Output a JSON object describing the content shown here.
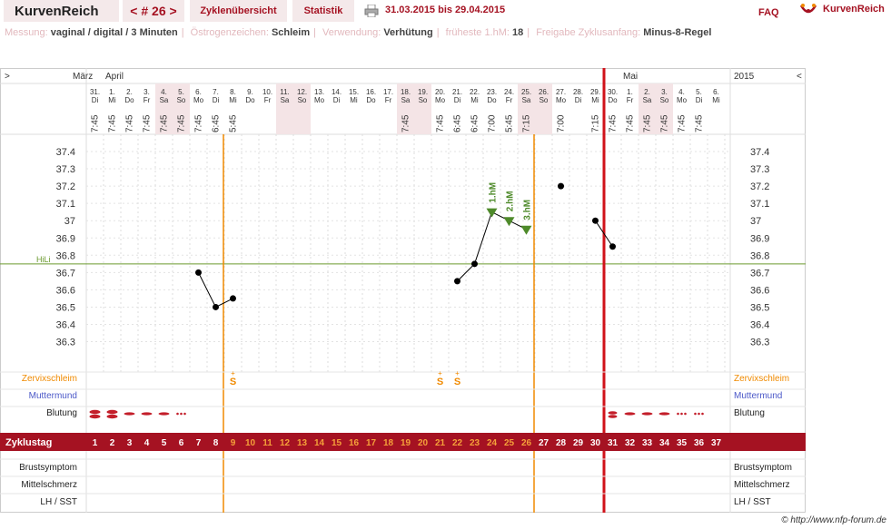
{
  "header": {
    "brand": "KurvenReich",
    "cycle_nav": "< # 26 >",
    "overview": "Zyklenübersicht",
    "stats": "Statistik",
    "date_range": "31.03.2015 bis 29.04.2015",
    "faq": "FAQ",
    "logo_text": "KurvenReich"
  },
  "info": {
    "measure_label": "Messung:",
    "measure_value": "vaginal / digital / 3 Minuten",
    "sign_label": "Östrogenzeichen:",
    "sign_value": "Schleim",
    "use_label": "Verwendung:",
    "use_value": "Verhütung",
    "earliest_label": "früheste 1.hM:",
    "earliest_value": "18",
    "release_label": "Freigabe Zyklusanfang:",
    "release_value": "Minus-8-Regel"
  },
  "grid": {
    "left_arrow": ">",
    "right_arrow": "<",
    "month_march": "März",
    "month_april": "April",
    "month_may": "Mai",
    "year": "2015"
  },
  "days": [
    {
      "d": "31.",
      "w": "Di",
      "t": "7:45",
      "we": false
    },
    {
      "d": "1.",
      "w": "Mi",
      "t": "7:45",
      "we": false
    },
    {
      "d": "2.",
      "w": "Do",
      "t": "7:45",
      "we": false
    },
    {
      "d": "3.",
      "w": "Fr",
      "t": "7:45",
      "we": false
    },
    {
      "d": "4.",
      "w": "Sa",
      "t": "7:45",
      "we": true
    },
    {
      "d": "5.",
      "w": "So",
      "t": "7:45",
      "we": true
    },
    {
      "d": "6.",
      "w": "Mo",
      "t": "7:45",
      "we": false
    },
    {
      "d": "7.",
      "w": "Di",
      "t": "6:45",
      "we": false
    },
    {
      "d": "8.",
      "w": "Mi",
      "t": "5:45",
      "we": false
    },
    {
      "d": "9.",
      "w": "Do",
      "t": "",
      "we": false
    },
    {
      "d": "10.",
      "w": "Fr",
      "t": "",
      "we": false
    },
    {
      "d": "11.",
      "w": "Sa",
      "t": "",
      "we": true
    },
    {
      "d": "12.",
      "w": "So",
      "t": "",
      "we": true
    },
    {
      "d": "13.",
      "w": "Mo",
      "t": "",
      "we": false
    },
    {
      "d": "14.",
      "w": "Di",
      "t": "",
      "we": false
    },
    {
      "d": "15.",
      "w": "Mi",
      "t": "",
      "we": false
    },
    {
      "d": "16.",
      "w": "Do",
      "t": "",
      "we": false
    },
    {
      "d": "17.",
      "w": "Fr",
      "t": "",
      "we": false
    },
    {
      "d": "18.",
      "w": "Sa",
      "t": "7:45",
      "we": true
    },
    {
      "d": "19.",
      "w": "So",
      "t": "",
      "we": true
    },
    {
      "d": "20.",
      "w": "Mo",
      "t": "7:45",
      "we": false
    },
    {
      "d": "21.",
      "w": "Di",
      "t": "6:45",
      "we": false
    },
    {
      "d": "22.",
      "w": "Mi",
      "t": "6:45",
      "we": false
    },
    {
      "d": "23.",
      "w": "Do",
      "t": "7:00",
      "we": false
    },
    {
      "d": "24.",
      "w": "Fr",
      "t": "5:45",
      "we": false
    },
    {
      "d": "25.",
      "w": "Sa",
      "t": "7:15",
      "we": true
    },
    {
      "d": "26.",
      "w": "So",
      "t": "",
      "we": true
    },
    {
      "d": "27.",
      "w": "Mo",
      "t": "7:00",
      "we": false
    },
    {
      "d": "28.",
      "w": "Di",
      "t": "",
      "we": false
    },
    {
      "d": "29.",
      "w": "Mi",
      "t": "7:15",
      "we": false
    },
    {
      "d": "30.",
      "w": "Do",
      "t": "7:45",
      "we": false
    },
    {
      "d": "1.",
      "w": "Fr",
      "t": "7:45",
      "we": false
    },
    {
      "d": "2.",
      "w": "Sa",
      "t": "7:45",
      "we": true
    },
    {
      "d": "3.",
      "w": "So",
      "t": "7:45",
      "we": true
    },
    {
      "d": "4.",
      "w": "Mo",
      "t": "7:45",
      "we": false
    },
    {
      "d": "5.",
      "w": "Di",
      "t": "7:45",
      "we": false
    },
    {
      "d": "6.",
      "w": "Mi",
      "t": "",
      "we": false
    }
  ],
  "y_ticks": [
    "37.4",
    "37.3",
    "37.2",
    "37.1",
    "37",
    "36.9",
    "36.8",
    "36.7",
    "36.6",
    "36.5",
    "36.4",
    "36.3"
  ],
  "hili_label": "HiLi",
  "hili_value": 36.75,
  "temps": [
    {
      "day": 7,
      "v": 36.7
    },
    {
      "day": 8,
      "v": 36.5
    },
    {
      "day": 9,
      "v": 36.55
    },
    {
      "day": 22,
      "v": 36.65
    },
    {
      "day": 23,
      "v": 36.75
    },
    {
      "day": 24,
      "v": 37.05
    },
    {
      "day": 25,
      "v": 37.0
    },
    {
      "day": 26,
      "v": 36.95
    },
    {
      "day": 28,
      "v": 37.2
    },
    {
      "day": 30,
      "v": 37.0
    },
    {
      "day": 31,
      "v": 36.85
    }
  ],
  "temp_lines": [
    [
      7,
      8,
      9
    ],
    [
      22,
      23,
      24,
      25,
      26
    ],
    [
      30,
      31
    ]
  ],
  "high_markers": [
    {
      "day": 24,
      "label": "1.hM"
    },
    {
      "day": 25,
      "label": "2.hM"
    },
    {
      "day": 26,
      "label": "3.hM"
    }
  ],
  "rows": {
    "cervix": "Zervixschleim",
    "mouth": "Muttermund",
    "bleeding": "Blutung",
    "cycle_day": "Zyklustag",
    "breast": "Brustsymptom",
    "midpain": "Mittelschmerz",
    "lh": "LH / SST"
  },
  "cervix_marks": [
    {
      "day": 9,
      "text": "S",
      "sup": "+"
    },
    {
      "day": 21,
      "text": "S",
      "sup": "+"
    },
    {
      "day": 22,
      "text": "S",
      "sup": "+"
    }
  ],
  "bleeding": [
    {
      "day": 1,
      "kind": "heavy"
    },
    {
      "day": 2,
      "kind": "heavy"
    },
    {
      "day": 3,
      "kind": "med"
    },
    {
      "day": 4,
      "kind": "med"
    },
    {
      "day": 5,
      "kind": "med"
    },
    {
      "day": 6,
      "kind": "dots"
    },
    {
      "day": 31,
      "kind": "heavy2"
    },
    {
      "day": 32,
      "kind": "med"
    },
    {
      "day": 33,
      "kind": "med"
    },
    {
      "day": 34,
      "kind": "med"
    },
    {
      "day": 35,
      "kind": "dots"
    },
    {
      "day": 36,
      "kind": "dots"
    }
  ],
  "cycle_days": [
    "1",
    "2",
    "3",
    "4",
    "5",
    "6",
    "7",
    "8",
    "9",
    "10",
    "11",
    "12",
    "13",
    "14",
    "15",
    "16",
    "17",
    "18",
    "19",
    "20",
    "21",
    "22",
    "23",
    "24",
    "25",
    "26",
    "27",
    "28",
    "29",
    "30",
    "31",
    "32",
    "33",
    "34",
    "35",
    "36",
    "37"
  ],
  "fertile_range": [
    9,
    26
  ],
  "colors": {
    "accent": "#a51222",
    "orange": "#f08a00",
    "hili": "#6b9a2f",
    "blue": "#4b58c8",
    "marker": "#4e8a2a",
    "weekend": "#f4e4e6"
  },
  "credit": "© http://www.nfp-forum.de"
}
